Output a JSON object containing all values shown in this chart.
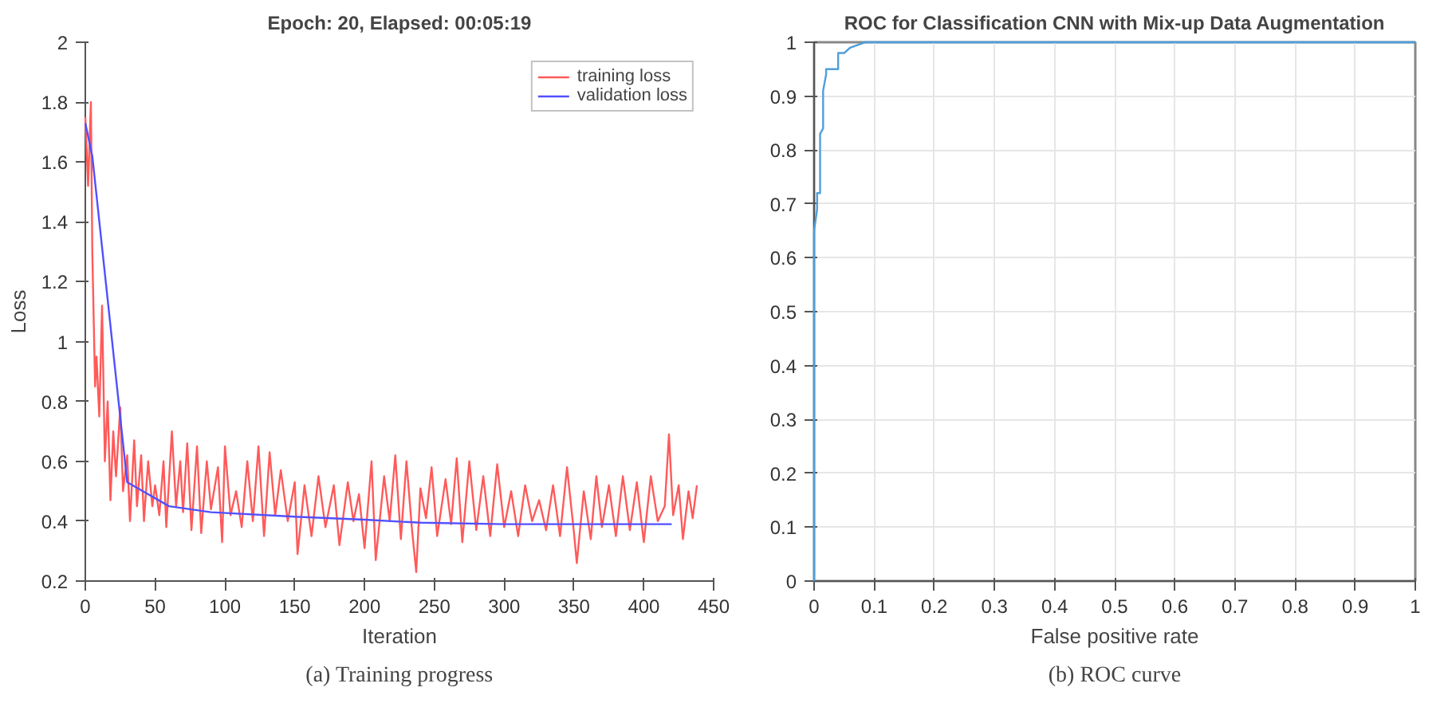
{
  "chart_data": [
    {
      "type": "line",
      "title": "Epoch: 20, Elapsed: 00:05:19",
      "xlabel": "Iteration",
      "ylabel": "Loss",
      "annotations": [
        "(a) Training progress"
      ],
      "xlim": [
        0,
        450
      ],
      "xticks": [
        0,
        50,
        100,
        150,
        200,
        250,
        300,
        350,
        400,
        450
      ],
      "ylim": [
        0.2,
        2
      ],
      "yticks": [
        0.2,
        0.4,
        0.6,
        0.8,
        1,
        1.2,
        1.4,
        1.6,
        1.8,
        2
      ],
      "grid": false,
      "legend": "top right",
      "series": [
        {
          "name": "training loss",
          "color": "#ff5a5a",
          "x": [
            0,
            2,
            4,
            5,
            7,
            8,
            10,
            12,
            14,
            16,
            18,
            20,
            22,
            25,
            27,
            30,
            32,
            35,
            37,
            40,
            42,
            45,
            48,
            50,
            53,
            56,
            58,
            62,
            65,
            68,
            70,
            73,
            76,
            80,
            83,
            87,
            90,
            95,
            98,
            100,
            104,
            108,
            112,
            116,
            120,
            124,
            128,
            132,
            136,
            140,
            145,
            150,
            152,
            157,
            162,
            167,
            172,
            178,
            182,
            188,
            192,
            196,
            200,
            205,
            208,
            214,
            218,
            222,
            226,
            230,
            234,
            237,
            240,
            244,
            248,
            252,
            258,
            262,
            266,
            270,
            275,
            280,
            285,
            290,
            295,
            300,
            305,
            310,
            315,
            320,
            325,
            330,
            335,
            340,
            345,
            350,
            352,
            357,
            362,
            366,
            370,
            375,
            380,
            385,
            390,
            395,
            400,
            405,
            410,
            415,
            418,
            421,
            425,
            428,
            432,
            435,
            438
          ],
          "values": [
            1.75,
            1.52,
            1.8,
            1.3,
            0.85,
            0.95,
            0.75,
            1.12,
            0.6,
            0.8,
            0.47,
            0.7,
            0.55,
            0.78,
            0.5,
            0.62,
            0.4,
            0.67,
            0.45,
            0.62,
            0.4,
            0.6,
            0.45,
            0.52,
            0.42,
            0.6,
            0.38,
            0.7,
            0.45,
            0.6,
            0.43,
            0.66,
            0.37,
            0.65,
            0.36,
            0.6,
            0.44,
            0.58,
            0.33,
            0.65,
            0.42,
            0.5,
            0.38,
            0.6,
            0.4,
            0.65,
            0.35,
            0.63,
            0.42,
            0.57,
            0.4,
            0.53,
            0.29,
            0.52,
            0.35,
            0.55,
            0.38,
            0.52,
            0.32,
            0.53,
            0.4,
            0.49,
            0.31,
            0.6,
            0.27,
            0.55,
            0.4,
            0.62,
            0.34,
            0.6,
            0.37,
            0.23,
            0.51,
            0.41,
            0.58,
            0.35,
            0.54,
            0.39,
            0.61,
            0.33,
            0.6,
            0.37,
            0.55,
            0.35,
            0.59,
            0.38,
            0.5,
            0.35,
            0.52,
            0.4,
            0.47,
            0.37,
            0.52,
            0.35,
            0.58,
            0.36,
            0.26,
            0.5,
            0.34,
            0.55,
            0.38,
            0.52,
            0.35,
            0.55,
            0.37,
            0.53,
            0.33,
            0.55,
            0.4,
            0.45,
            0.69,
            0.42,
            0.52,
            0.34,
            0.5,
            0.41,
            0.52
          ]
        },
        {
          "name": "validation loss",
          "color": "#5050ff",
          "x": [
            0,
            5,
            30,
            60,
            90,
            150,
            200,
            240,
            300,
            350,
            400,
            420
          ],
          "values": [
            1.73,
            1.62,
            0.53,
            0.45,
            0.43,
            0.415,
            0.405,
            0.395,
            0.39,
            0.39,
            0.39,
            0.39
          ]
        }
      ]
    },
    {
      "type": "line",
      "title": "ROC for Classification CNN with Mix-up Data Augmentation",
      "xlabel": "False positive rate",
      "annotations": [
        "(b) ROC curve"
      ],
      "xlim": [
        0,
        1
      ],
      "xticks": [
        0,
        0.1,
        0.2,
        0.3,
        0.4,
        0.5,
        0.6,
        0.7,
        0.8,
        0.9,
        1
      ],
      "ylim": [
        0,
        1
      ],
      "yticks": [
        0,
        0.1,
        0.2,
        0.3,
        0.4,
        0.5,
        0.6,
        0.7,
        0.8,
        0.9,
        1
      ],
      "grid": true,
      "series": [
        {
          "color": "#4f9fdc",
          "x": [
            0,
            0,
            0.005,
            0.005,
            0.01,
            0.01,
            0.015,
            0.015,
            0.02,
            0.02,
            0.04,
            0.04,
            0.05,
            0.06,
            0.085,
            1
          ],
          "values": [
            0,
            0.65,
            0.69,
            0.72,
            0.72,
            0.83,
            0.84,
            0.91,
            0.94,
            0.95,
            0.95,
            0.98,
            0.98,
            0.99,
            1,
            1
          ]
        }
      ]
    }
  ]
}
